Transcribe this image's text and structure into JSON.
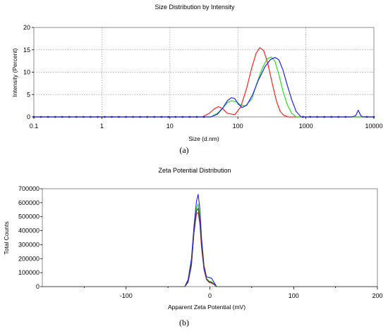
{
  "chart_data": [
    {
      "type": "line",
      "title": "Size Distribution by Intensity",
      "xlabel": "Size (d.nm)",
      "ylabel": "Intensity (Percent)",
      "xscale": "log",
      "xlim": [
        0.1,
        10000
      ],
      "ylim": [
        0,
        20
      ],
      "x_ticks": [
        0.1,
        1,
        10,
        100,
        1000,
        10000
      ],
      "x_tick_labels": [
        "0.1",
        "1",
        "10",
        "100",
        "1000",
        "10000"
      ],
      "y_ticks": [
        0,
        5,
        10,
        15,
        20
      ],
      "y_tick_labels": [
        "0",
        "5",
        "10",
        "15",
        "20"
      ],
      "grid": true,
      "caption": "(a)",
      "series": [
        {
          "color": "#ff2020",
          "x": [
            0.1,
            30,
            38,
            45,
            52,
            60,
            70,
            90,
            110,
            135,
            160,
            185,
            210,
            240,
            275,
            320,
            370,
            420,
            480,
            550,
            10000
          ],
          "y": [
            0,
            0,
            0.8,
            1.8,
            2.3,
            1.8,
            0.8,
            0.5,
            2.2,
            6.5,
            11,
            14.2,
            15.5,
            14.8,
            12,
            7.5,
            3.5,
            1.2,
            0.3,
            0,
            0
          ]
        },
        {
          "color": "#20e020",
          "x": [
            0.1,
            40,
            50,
            60,
            70,
            80,
            95,
            110,
            130,
            160,
            190,
            230,
            270,
            310,
            350,
            400,
            460,
            530,
            620,
            720,
            10000
          ],
          "y": [
            0,
            0,
            0.8,
            2,
            3.2,
            3.6,
            3.4,
            2.6,
            2.5,
            4,
            7.5,
            11,
            13,
            13.4,
            12.5,
            9.5,
            5.8,
            2.8,
            0.8,
            0,
            0
          ]
        },
        {
          "color": "#2020ff",
          "x": [
            0.1,
            40,
            50,
            60,
            70,
            80,
            90,
            100,
            115,
            135,
            165,
            200,
            250,
            300,
            350,
            400,
            460,
            530,
            620,
            720,
            850,
            4800,
            5400,
            5900,
            6400,
            6900,
            10000
          ],
          "y": [
            0,
            0,
            0.6,
            2,
            3.6,
            4.3,
            4.1,
            3,
            2.1,
            2.6,
            5,
            8.2,
            11.2,
            12.8,
            13.3,
            12.8,
            10.5,
            7.2,
            3.8,
            1.2,
            0,
            0,
            0.3,
            1.5,
            0.3,
            0,
            0
          ]
        }
      ]
    },
    {
      "type": "line",
      "title": "Zeta Potential Distribution",
      "xlabel": "Apparent Zeta Potential (mV)",
      "ylabel": "Total Counts",
      "xlim": [
        -200,
        200
      ],
      "ylim": [
        0,
        700000
      ],
      "x_ticks": [
        -100,
        0,
        100,
        200
      ],
      "x_tick_labels": [
        "-100",
        "0",
        "100",
        "200"
      ],
      "x_minor_ticks": [
        -150,
        -50,
        50,
        150
      ],
      "y_ticks": [
        0,
        100000,
        200000,
        300000,
        400000,
        500000,
        600000,
        700000
      ],
      "y_tick_labels": [
        "0",
        "100000",
        "200000",
        "300000",
        "400000",
        "500000",
        "600000",
        "700000"
      ],
      "grid": false,
      "caption": "(b)",
      "series": [
        {
          "color": "#ff2020",
          "x": [
            -200,
            -30,
            -26,
            -22,
            -19,
            -16,
            -14,
            -12,
            -10,
            -7,
            -4,
            -1,
            2,
            5,
            8,
            200
          ],
          "y": [
            0,
            0,
            30000,
            150000,
            380000,
            520000,
            530000,
            450000,
            280000,
            120000,
            50000,
            30000,
            25000,
            15000,
            0,
            0
          ]
        },
        {
          "color": "#20e020",
          "x": [
            -200,
            -30,
            -26,
            -22,
            -19,
            -16,
            -14,
            -12,
            -10,
            -7,
            -4,
            -1,
            2,
            5,
            8,
            200
          ],
          "y": [
            0,
            0,
            40000,
            180000,
            400000,
            560000,
            590000,
            500000,
            320000,
            140000,
            60000,
            40000,
            35000,
            20000,
            0,
            0
          ]
        },
        {
          "color": "#2020ff",
          "x": [
            -200,
            -30,
            -26,
            -22,
            -19,
            -16,
            -14,
            -12,
            -10,
            -7,
            -4,
            -1,
            2,
            5,
            8,
            200
          ],
          "y": [
            0,
            0,
            50000,
            200000,
            430000,
            610000,
            660000,
            560000,
            350000,
            150000,
            70000,
            65000,
            60000,
            30000,
            0,
            0
          ]
        },
        {
          "color": "#404040",
          "x": [
            -200,
            -30,
            -26,
            -22,
            -19,
            -16,
            -14,
            -12,
            -10,
            -7,
            -4,
            -1,
            2,
            5,
            8,
            200
          ],
          "y": [
            0,
            0,
            35000,
            160000,
            390000,
            540000,
            560000,
            470000,
            300000,
            130000,
            55000,
            35000,
            30000,
            18000,
            0,
            0
          ]
        }
      ]
    }
  ]
}
